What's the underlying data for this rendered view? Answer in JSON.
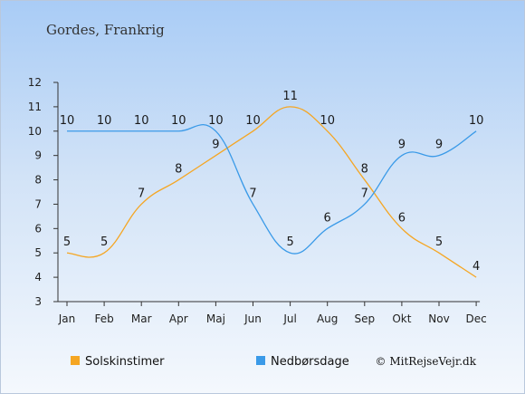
{
  "page": {
    "title": "Gordes, Frankrig",
    "credit": "© MitRejseVejr.dk"
  },
  "chart_data": {
    "type": "line",
    "categories": [
      "Jan",
      "Feb",
      "Mar",
      "Apr",
      "Maj",
      "Jun",
      "Jul",
      "Aug",
      "Sep",
      "Okt",
      "Nov",
      "Dec"
    ],
    "ylim": [
      3,
      12
    ],
    "yticks": [
      3,
      4,
      5,
      6,
      7,
      8,
      9,
      10,
      11,
      12
    ],
    "grid": false,
    "legend_position": "bottom-left",
    "series": [
      {
        "name": "Solskinstimer",
        "color": "#f5a623",
        "values": [
          5,
          5,
          7,
          8,
          9,
          10,
          11,
          10,
          8,
          6,
          5,
          4
        ]
      },
      {
        "name": "Nedbørsdage",
        "color": "#3a9ae8",
        "values": [
          10,
          10,
          10,
          10,
          10,
          7,
          5,
          6,
          7,
          9,
          9,
          10
        ]
      }
    ]
  }
}
